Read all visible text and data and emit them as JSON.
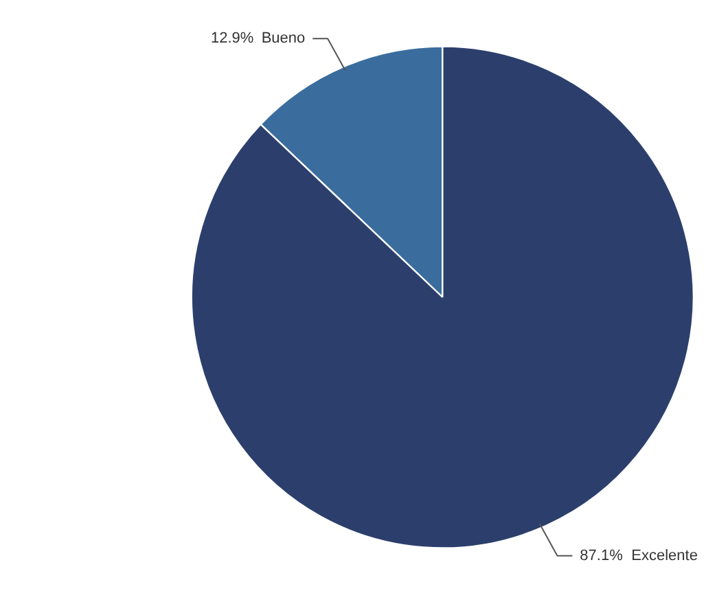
{
  "chart_data": {
    "type": "pie",
    "categories": [
      "Bueno",
      "Excelente"
    ],
    "values": [
      12.9,
      87.1
    ],
    "colors": [
      "#3a6d9e",
      "#2c3f6c"
    ],
    "value_labels": [
      "12.9%",
      "87.1%"
    ]
  }
}
